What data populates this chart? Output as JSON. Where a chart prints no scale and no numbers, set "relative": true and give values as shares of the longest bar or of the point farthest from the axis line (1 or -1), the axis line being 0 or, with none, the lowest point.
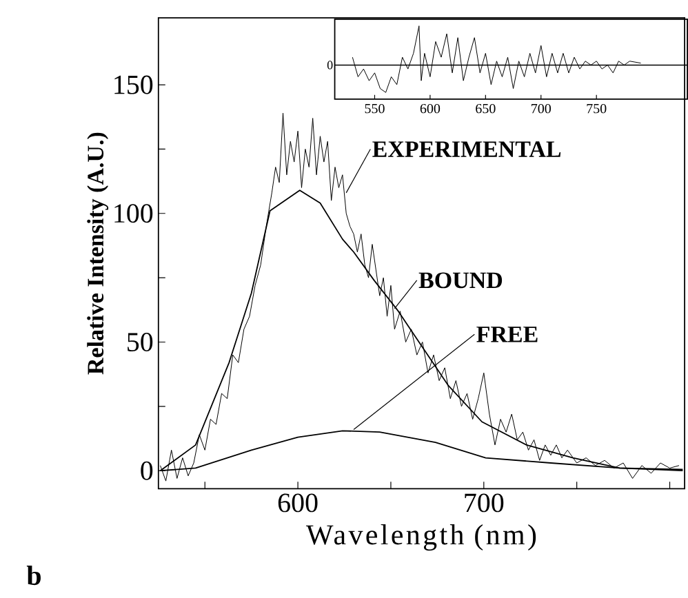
{
  "chart_data": [
    {
      "type": "line",
      "xlabel": "Wavelength (nm)",
      "ylabel": "Relative Intensity (A.U.)",
      "xlim": [
        525,
        808
      ],
      "ylim": [
        -7,
        176
      ],
      "xticks": [
        {
          "value": 550,
          "label": null
        },
        600,
        {
          "value": 650,
          "label": null
        },
        700,
        {
          "value": 750,
          "label": null
        },
        {
          "value": 800,
          "label": null
        }
      ],
      "yticks": [
        0,
        {
          "value": 25,
          "label": null
        },
        50,
        {
          "value": 75,
          "label": null
        },
        100,
        {
          "value": 125,
          "label": null
        },
        150
      ],
      "annotations": [
        "b"
      ],
      "series": [
        {
          "name": "EXPERIMENTAL",
          "color": "#000000",
          "x": [
            526,
            529,
            532,
            535,
            538,
            541,
            544,
            547,
            550,
            553,
            556,
            559,
            562,
            565,
            568,
            571,
            574,
            577,
            580,
            583,
            586,
            588,
            590,
            592,
            594,
            596,
            598,
            600,
            602,
            604,
            606,
            608,
            610,
            612,
            614,
            616,
            618,
            620,
            622,
            624,
            626,
            628,
            630,
            632,
            634,
            636,
            638,
            640,
            642,
            644,
            646,
            648,
            650,
            652,
            655,
            658,
            661,
            664,
            667,
            670,
            673,
            676,
            679,
            682,
            685,
            688,
            691,
            694,
            697,
            700,
            703,
            706,
            709,
            712,
            715,
            718,
            721,
            724,
            727,
            730,
            733,
            736,
            739,
            742,
            745,
            750,
            755,
            760,
            765,
            770,
            775,
            780,
            785,
            790,
            795,
            800,
            805
          ],
          "values": [
            2,
            -4,
            8,
            -3,
            5,
            -2,
            3,
            14,
            8,
            20,
            18,
            30,
            28,
            45,
            42,
            55,
            60,
            72,
            80,
            95,
            108,
            118,
            112,
            139,
            115,
            128,
            120,
            132,
            110,
            125,
            118,
            137,
            115,
            130,
            120,
            128,
            105,
            118,
            110,
            115,
            100,
            95,
            92,
            85,
            92,
            80,
            75,
            88,
            78,
            68,
            75,
            60,
            72,
            55,
            62,
            50,
            55,
            45,
            50,
            38,
            45,
            35,
            40,
            28,
            35,
            25,
            30,
            20,
            28,
            38,
            22,
            10,
            20,
            15,
            22,
            12,
            15,
            8,
            12,
            4,
            10,
            6,
            10,
            5,
            8,
            3,
            5,
            2,
            4,
            1,
            3,
            -3,
            2,
            -1,
            3,
            1,
            2
          ]
        },
        {
          "name": "BOUND",
          "color": "#000000",
          "x": [
            526,
            545,
            563,
            575,
            585,
            601,
            612,
            624,
            630,
            641,
            654,
            667,
            681,
            699,
            723,
            748,
            773,
            807
          ],
          "values": [
            0,
            10,
            42,
            69,
            101,
            109,
            104,
            90,
            85,
            74,
            62,
            48,
            33,
            19,
            10,
            5,
            1,
            0
          ]
        },
        {
          "name": "FREE",
          "color": "#000000",
          "x": [
            526,
            545,
            575,
            600,
            624,
            644,
            674,
            701,
            736,
            773,
            807
          ],
          "values": [
            0,
            1,
            8,
            13,
            15.5,
            15,
            11,
            5,
            3,
            1,
            0.5
          ]
        }
      ]
    },
    {
      "type": "line",
      "relative": true,
      "xlim": [
        514,
        832
      ],
      "xticks": [
        550,
        600,
        650,
        700,
        750
      ],
      "annotations": [
        "0"
      ],
      "series": [
        {
          "color": "#000000",
          "x": [
            530,
            535,
            540,
            545,
            550,
            555,
            560,
            565,
            570,
            575,
            580,
            585,
            590,
            592,
            595,
            600,
            605,
            610,
            615,
            620,
            625,
            630,
            635,
            640,
            645,
            650,
            655,
            660,
            665,
            670,
            675,
            680,
            685,
            690,
            695,
            700,
            705,
            710,
            715,
            720,
            725,
            730,
            735,
            740,
            745,
            750,
            755,
            760,
            765,
            770,
            775,
            780,
            790
          ],
          "values": [
            0.2,
            -0.3,
            -0.1,
            -0.4,
            -0.2,
            -0.6,
            -0.7,
            -0.3,
            -0.5,
            0.2,
            -0.1,
            0.3,
            1.0,
            -0.4,
            0.3,
            -0.3,
            0.6,
            0.2,
            0.8,
            -0.2,
            0.7,
            -0.4,
            0.2,
            0.7,
            -0.2,
            0.3,
            -0.5,
            0.1,
            -0.3,
            0.2,
            -0.6,
            0.1,
            -0.3,
            0.3,
            -0.2,
            0.5,
            -0.3,
            0.3,
            -0.2,
            0.3,
            -0.2,
            0.2,
            -0.1,
            0.1,
            0.0,
            0.1,
            -0.1,
            0.0,
            -0.2,
            0.1,
            0.0,
            0.1,
            0.05
          ]
        }
      ]
    }
  ]
}
